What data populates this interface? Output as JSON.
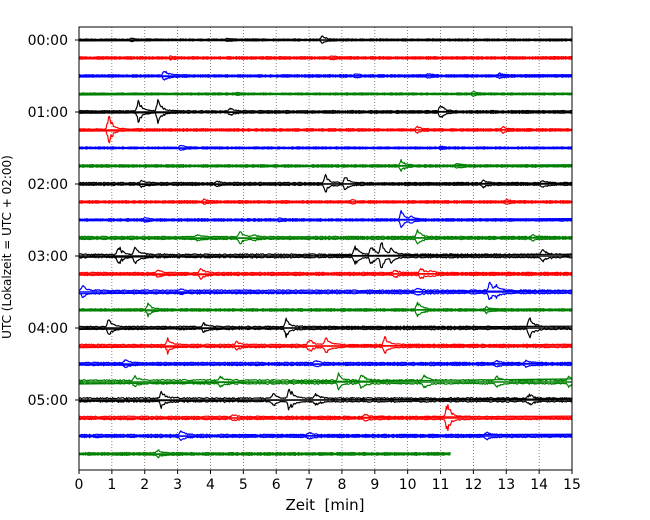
{
  "chart_data": {
    "type": "line",
    "title": "",
    "xlabel": "Zeit  [min]",
    "ylabel": "UTC (Lokalzeit = UTC + 02:00)",
    "xlim": [
      0,
      15
    ],
    "x_ticks": [
      "0",
      "1",
      "2",
      "3",
      "4",
      "5",
      "6",
      "7",
      "8",
      "9",
      "10",
      "11",
      "12",
      "13",
      "14",
      "15"
    ],
    "y_tick_labels": [
      "00:00",
      "01:00",
      "02:00",
      "03:00",
      "04:00",
      "05:00"
    ],
    "grid": "vertical dotted at each minute",
    "trace_interval_minutes": 15,
    "trace_start_times": [
      "00:00",
      "00:15",
      "00:30",
      "00:45",
      "01:00",
      "01:15",
      "01:30",
      "01:45",
      "02:00",
      "02:15",
      "02:30",
      "02:45",
      "03:00",
      "03:15",
      "03:30",
      "03:45",
      "04:00",
      "04:15",
      "04:30",
      "04:45",
      "05:00",
      "05:15",
      "05:30",
      "05:45"
    ],
    "colors": [
      "#000000",
      "#ff0000",
      "#0000ff",
      "#008000"
    ],
    "last_trace_end_minute": 11.3,
    "series": [
      {
        "start": "00:00",
        "color": "#000000",
        "base_noise": 0.8,
        "events": [
          {
            "t": 1.6,
            "a": 1.5
          },
          {
            "t": 4.5,
            "a": 1.2
          },
          {
            "t": 7.4,
            "a": 4
          }
        ]
      },
      {
        "start": "00:15",
        "color": "#ff0000",
        "base_noise": 1.0,
        "events": [
          {
            "t": 2.8,
            "a": 1.4
          },
          {
            "t": 7.7,
            "a": 1.4
          }
        ]
      },
      {
        "start": "00:30",
        "color": "#0000ff",
        "base_noise": 1.0,
        "events": [
          {
            "t": 2.6,
            "a": 6
          },
          {
            "t": 8.4,
            "a": 1.5
          },
          {
            "t": 10.6,
            "a": 1.8
          },
          {
            "t": 12.8,
            "a": 2.5
          }
        ]
      },
      {
        "start": "00:45",
        "color": "#008000",
        "base_noise": 0.8,
        "events": [
          {
            "t": 4.8,
            "a": 1.5
          },
          {
            "t": 12.0,
            "a": 2.5
          }
        ]
      },
      {
        "start": "01:00",
        "color": "#000000",
        "base_noise": 1.1,
        "events": [
          {
            "t": 1.8,
            "a": 12
          },
          {
            "t": 2.4,
            "a": 14
          },
          {
            "t": 4.6,
            "a": 3
          },
          {
            "t": 11.0,
            "a": 8
          }
        ]
      },
      {
        "start": "01:15",
        "color": "#ff0000",
        "base_noise": 1.0,
        "events": [
          {
            "t": 0.9,
            "a": 16
          },
          {
            "t": 10.3,
            "a": 3
          },
          {
            "t": 12.9,
            "a": 3
          }
        ]
      },
      {
        "start": "01:30",
        "color": "#0000ff",
        "base_noise": 0.8,
        "events": [
          {
            "t": 3.1,
            "a": 3
          },
          {
            "t": 11.0,
            "a": 1.5
          }
        ]
      },
      {
        "start": "01:45",
        "color": "#008000",
        "base_noise": 1.0,
        "events": [
          {
            "t": 9.8,
            "a": 6
          },
          {
            "t": 11.5,
            "a": 1.8
          }
        ]
      },
      {
        "start": "02:00",
        "color": "#000000",
        "base_noise": 1.2,
        "events": [
          {
            "t": 1.9,
            "a": 3
          },
          {
            "t": 4.2,
            "a": 2.5
          },
          {
            "t": 7.5,
            "a": 9
          },
          {
            "t": 8.1,
            "a": 7
          },
          {
            "t": 12.3,
            "a": 3
          },
          {
            "t": 14.1,
            "a": 3
          }
        ]
      },
      {
        "start": "02:15",
        "color": "#ff0000",
        "base_noise": 1.0,
        "events": [
          {
            "t": 3.8,
            "a": 2
          },
          {
            "t": 8.3,
            "a": 1.5
          },
          {
            "t": 13.0,
            "a": 2
          }
        ]
      },
      {
        "start": "02:30",
        "color": "#0000ff",
        "base_noise": 1.0,
        "events": [
          {
            "t": 2.0,
            "a": 2
          },
          {
            "t": 6.1,
            "a": 1.5
          },
          {
            "t": 9.8,
            "a": 10
          },
          {
            "t": 10.1,
            "a": 3
          }
        ]
      },
      {
        "start": "02:45",
        "color": "#008000",
        "base_noise": 1.3,
        "events": [
          {
            "t": 3.6,
            "a": 3
          },
          {
            "t": 4.9,
            "a": 7
          },
          {
            "t": 5.3,
            "a": 3
          },
          {
            "t": 10.3,
            "a": 8
          },
          {
            "t": 13.8,
            "a": 2
          }
        ]
      },
      {
        "start": "03:00",
        "color": "#000000",
        "base_noise": 1.6,
        "events": [
          {
            "t": 1.2,
            "a": 10
          },
          {
            "t": 1.7,
            "a": 9
          },
          {
            "t": 8.4,
            "a": 9
          },
          {
            "t": 8.9,
            "a": 11
          },
          {
            "t": 9.2,
            "a": 14
          },
          {
            "t": 9.5,
            "a": 6
          },
          {
            "t": 14.1,
            "a": 7
          }
        ]
      },
      {
        "start": "03:15",
        "color": "#ff0000",
        "base_noise": 1.3,
        "events": [
          {
            "t": 2.4,
            "a": 4
          },
          {
            "t": 3.7,
            "a": 5
          },
          {
            "t": 9.6,
            "a": 4
          },
          {
            "t": 10.4,
            "a": 6
          },
          {
            "t": 10.7,
            "a": 3
          }
        ]
      },
      {
        "start": "03:30",
        "color": "#0000ff",
        "base_noise": 1.6,
        "events": [
          {
            "t": 0.1,
            "a": 6
          },
          {
            "t": 3.1,
            "a": 2
          },
          {
            "t": 10.3,
            "a": 3
          },
          {
            "t": 12.5,
            "a": 10
          },
          {
            "t": 12.7,
            "a": 5
          }
        ]
      },
      {
        "start": "03:45",
        "color": "#008000",
        "base_noise": 1.0,
        "events": [
          {
            "t": 2.1,
            "a": 7
          },
          {
            "t": 10.3,
            "a": 9
          },
          {
            "t": 12.4,
            "a": 3
          }
        ]
      },
      {
        "start": "04:00",
        "color": "#000000",
        "base_noise": 1.4,
        "events": [
          {
            "t": 0.9,
            "a": 9
          },
          {
            "t": 3.8,
            "a": 4
          },
          {
            "t": 6.3,
            "a": 9
          },
          {
            "t": 13.7,
            "a": 12
          }
        ]
      },
      {
        "start": "04:15",
        "color": "#ff0000",
        "base_noise": 1.4,
        "events": [
          {
            "t": 2.7,
            "a": 7
          },
          {
            "t": 4.8,
            "a": 4
          },
          {
            "t": 7.0,
            "a": 7
          },
          {
            "t": 7.5,
            "a": 10
          },
          {
            "t": 9.3,
            "a": 10
          }
        ]
      },
      {
        "start": "04:30",
        "color": "#0000ff",
        "base_noise": 1.3,
        "events": [
          {
            "t": 1.4,
            "a": 4
          },
          {
            "t": 7.2,
            "a": 3
          },
          {
            "t": 12.7,
            "a": 3
          },
          {
            "t": 13.6,
            "a": 3
          }
        ]
      },
      {
        "start": "04:45",
        "color": "#008000",
        "base_noise": 1.8,
        "events": [
          {
            "t": 1.7,
            "a": 5
          },
          {
            "t": 4.3,
            "a": 5
          },
          {
            "t": 7.9,
            "a": 7
          },
          {
            "t": 8.6,
            "a": 8
          },
          {
            "t": 10.5,
            "a": 6
          },
          {
            "t": 12.7,
            "a": 5
          },
          {
            "t": 14.9,
            "a": 5
          }
        ]
      },
      {
        "start": "05:00",
        "color": "#000000",
        "base_noise": 1.8,
        "events": [
          {
            "t": 2.5,
            "a": 8
          },
          {
            "t": 5.9,
            "a": 8
          },
          {
            "t": 6.4,
            "a": 12
          },
          {
            "t": 7.2,
            "a": 6
          },
          {
            "t": 13.7,
            "a": 5
          }
        ]
      },
      {
        "start": "05:15",
        "color": "#ff0000",
        "base_noise": 1.4,
        "events": [
          {
            "t": 4.7,
            "a": 3
          },
          {
            "t": 8.7,
            "a": 3
          },
          {
            "t": 11.2,
            "a": 16
          }
        ]
      },
      {
        "start": "05:30",
        "color": "#0000ff",
        "base_noise": 1.3,
        "events": [
          {
            "t": 3.1,
            "a": 6
          },
          {
            "t": 7.0,
            "a": 3
          },
          {
            "t": 12.4,
            "a": 3
          }
        ]
      },
      {
        "start": "05:45",
        "color": "#008000",
        "base_noise": 1.1,
        "events": [
          {
            "t": 2.4,
            "a": 4
          }
        ]
      }
    ]
  }
}
